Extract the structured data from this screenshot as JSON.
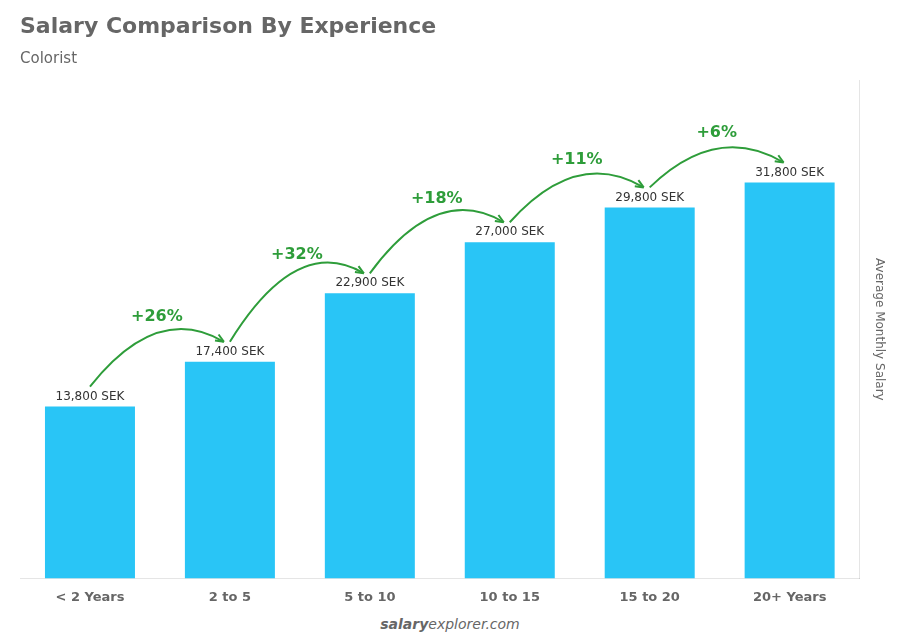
{
  "chart_data": {
    "type": "bar",
    "title": "Salary Comparison By Experience",
    "subtitle": "Colorist",
    "categories": [
      "< 2 Years",
      "2 to 5",
      "5 to 10",
      "10 to 15",
      "15 to 20",
      "20+ Years"
    ],
    "values": [
      13800,
      17400,
      22900,
      27000,
      29800,
      31800
    ],
    "value_labels": [
      "13,800 SEK",
      "17,400 SEK",
      "22,900 SEK",
      "27,000 SEK",
      "29,800 SEK",
      "31,800 SEK"
    ],
    "data_labels": true,
    "annotations": [
      "+26%",
      "+32%",
      "+18%",
      "+11%",
      "+6%"
    ],
    "y_label": "Average Monthly Salary",
    "footer_salary": "salary",
    "footer_rest": "explorer.com",
    "color": "#29c5f6",
    "ylim": [
      0,
      40000
    ],
    "grid": false,
    "tick_labels": "x"
  }
}
